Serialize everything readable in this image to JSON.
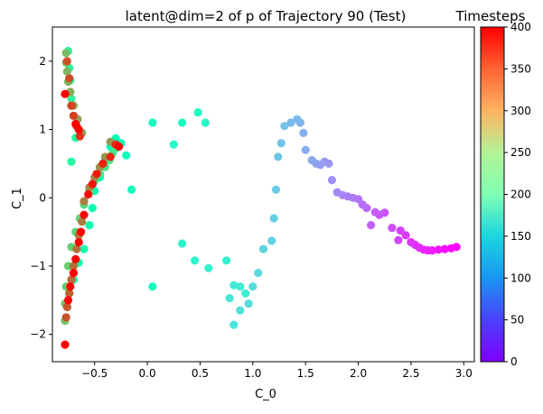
{
  "chart_data": {
    "type": "scatter",
    "title": "latent@dim=2 of p of Trajectory 90 (Test)",
    "xlabel": "C_0",
    "ylabel": "C_1",
    "xlim": [
      -0.9,
      3.1
    ],
    "ylim": [
      -2.4,
      2.5
    ],
    "xticks": [
      -0.5,
      0.0,
      0.5,
      1.0,
      1.5,
      2.0,
      2.5,
      3.0
    ],
    "xtick_labels": [
      "−0.5",
      "0.0",
      "0.5",
      "1.0",
      "1.5",
      "2.0",
      "2.5",
      "3.0"
    ],
    "yticks": [
      -2,
      -1,
      0,
      1,
      2
    ],
    "ytick_labels": [
      "−2",
      "−1",
      "0",
      "1",
      "2"
    ],
    "grid": false,
    "colormap": "rainbow",
    "colorbar": {
      "label": "Timesteps",
      "range": [
        0,
        400
      ],
      "ticks": [
        0,
        50,
        100,
        150,
        200,
        250,
        300,
        350,
        400
      ],
      "tick_labels": [
        "0",
        "50",
        "100",
        "150",
        "200",
        "250",
        "300",
        "350",
        "400"
      ]
    },
    "points": [
      [
        2.93,
        -0.72,
        0
      ],
      [
        2.88,
        -0.74,
        3
      ],
      [
        2.82,
        -0.75,
        6
      ],
      [
        2.76,
        -0.76,
        9
      ],
      [
        2.7,
        -0.77,
        12
      ],
      [
        2.66,
        -0.77,
        15
      ],
      [
        2.62,
        -0.76,
        18
      ],
      [
        2.58,
        -0.73,
        21
      ],
      [
        2.54,
        -0.69,
        24
      ],
      [
        2.5,
        -0.65,
        27
      ],
      [
        2.45,
        -0.55,
        30
      ],
      [
        2.4,
        -0.48,
        33
      ],
      [
        2.38,
        -0.62,
        36
      ],
      [
        2.32,
        -0.44,
        39
      ],
      [
        2.25,
        -0.22,
        42
      ],
      [
        2.2,
        -0.25,
        45
      ],
      [
        2.16,
        -0.21,
        48
      ],
      [
        2.12,
        -0.4,
        51
      ],
      [
        2.08,
        -0.15,
        54
      ],
      [
        2.04,
        -0.1,
        57
      ],
      [
        2.0,
        -0.02,
        60
      ],
      [
        1.95,
        0.0,
        63
      ],
      [
        1.9,
        0.02,
        66
      ],
      [
        1.85,
        0.04,
        69
      ],
      [
        1.8,
        0.08,
        72
      ],
      [
        1.75,
        0.26,
        75
      ],
      [
        1.72,
        0.5,
        78
      ],
      [
        1.68,
        0.53,
        81
      ],
      [
        1.64,
        0.48,
        84
      ],
      [
        1.6,
        0.5,
        87
      ],
      [
        1.56,
        0.55,
        90
      ],
      [
        1.5,
        0.7,
        93
      ],
      [
        1.48,
        0.95,
        96
      ],
      [
        1.45,
        1.1,
        99
      ],
      [
        1.42,
        1.15,
        102
      ],
      [
        1.36,
        1.1,
        105
      ],
      [
        1.3,
        1.05,
        108
      ],
      [
        1.27,
        0.8,
        111
      ],
      [
        1.24,
        0.6,
        114
      ],
      [
        1.22,
        0.12,
        117
      ],
      [
        1.2,
        -0.3,
        120
      ],
      [
        1.18,
        -0.63,
        123
      ],
      [
        1.1,
        -0.75,
        126
      ],
      [
        1.05,
        -1.1,
        129
      ],
      [
        1.0,
        -1.3,
        132
      ],
      [
        0.96,
        -1.55,
        135
      ],
      [
        0.88,
        -1.65,
        138
      ],
      [
        0.82,
        -1.86,
        141
      ],
      [
        0.78,
        -1.47,
        144
      ],
      [
        0.82,
        -1.28,
        147
      ],
      [
        0.88,
        -1.3,
        150
      ],
      [
        0.93,
        -1.4,
        153
      ],
      [
        0.75,
        -0.92,
        156
      ],
      [
        0.58,
        -1.03,
        159
      ],
      [
        0.45,
        -0.92,
        162
      ],
      [
        0.33,
        -0.67,
        165
      ],
      [
        0.25,
        0.78,
        168
      ],
      [
        0.55,
        1.1,
        171
      ],
      [
        0.48,
        1.25,
        174
      ],
      [
        0.33,
        1.1,
        177
      ],
      [
        0.05,
        1.1,
        180
      ],
      [
        0.05,
        -1.3,
        183
      ],
      [
        -0.15,
        0.12,
        186
      ],
      [
        -0.2,
        0.62,
        189
      ],
      [
        -0.25,
        0.8,
        192
      ],
      [
        -0.3,
        0.87,
        195
      ],
      [
        -0.35,
        0.75,
        198
      ],
      [
        -0.4,
        0.55,
        201
      ],
      [
        -0.45,
        0.3,
        204
      ],
      [
        -0.5,
        0.1,
        207
      ],
      [
        -0.52,
        -0.15,
        210
      ],
      [
        -0.55,
        -0.4,
        213
      ],
      [
        -0.6,
        -0.75,
        216
      ],
      [
        -0.65,
        -0.95,
        219
      ],
      [
        -0.7,
        -1.2,
        222
      ],
      [
        -0.68,
        0.88,
        225
      ],
      [
        -0.72,
        0.53,
        228
      ],
      [
        -0.75,
        2.15,
        231
      ],
      [
        -0.74,
        1.9,
        234
      ],
      [
        -0.73,
        1.72,
        237
      ],
      [
        -0.72,
        1.45,
        240
      ],
      [
        -0.74,
        -1.4,
        243
      ],
      [
        -0.76,
        -1.6,
        246
      ],
      [
        -0.3,
        0.72,
        249
      ],
      [
        -0.33,
        0.65,
        252
      ],
      [
        -0.36,
        0.55,
        255
      ],
      [
        -0.4,
        0.45,
        258
      ],
      [
        -0.45,
        0.35,
        261
      ],
      [
        -0.5,
        0.25,
        264
      ],
      [
        -0.55,
        0.1,
        267
      ],
      [
        -0.6,
        -0.1,
        270
      ],
      [
        -0.64,
        -0.3,
        273
      ],
      [
        -0.68,
        -0.5,
        276
      ],
      [
        -0.72,
        -0.72,
        279
      ],
      [
        -0.75,
        -1.0,
        282
      ],
      [
        -0.77,
        -1.3,
        285
      ],
      [
        -0.78,
        -1.55,
        288
      ],
      [
        -0.78,
        -1.8,
        291
      ],
      [
        -0.77,
        2.12,
        294
      ],
      [
        -0.77,
        1.98,
        297
      ],
      [
        -0.76,
        1.85,
        300
      ],
      [
        -0.75,
        1.7,
        303
      ],
      [
        -0.73,
        1.55,
        306
      ],
      [
        -0.7,
        1.35,
        309
      ],
      [
        -0.66,
        1.15,
        312
      ],
      [
        -0.62,
        0.95,
        315
      ],
      [
        -0.35,
        0.82,
        318
      ],
      [
        -0.4,
        0.6,
        321
      ],
      [
        -0.45,
        0.45,
        324
      ],
      [
        -0.5,
        0.3,
        327
      ],
      [
        -0.55,
        0.15,
        330
      ],
      [
        -0.6,
        -0.05,
        333
      ],
      [
        -0.62,
        -0.35,
        336
      ],
      [
        -0.65,
        -0.55,
        339
      ],
      [
        -0.67,
        -0.75,
        342
      ],
      [
        -0.7,
        -1.0,
        345
      ],
      [
        -0.72,
        -1.2,
        348
      ],
      [
        -0.74,
        -1.4,
        351
      ],
      [
        -0.76,
        -1.6,
        354
      ],
      [
        -0.77,
        -1.75,
        357
      ],
      [
        -0.76,
        2.0,
        360
      ],
      [
        -0.74,
        1.75,
        363
      ],
      [
        -0.72,
        1.35,
        366
      ],
      [
        -0.7,
        1.2,
        369
      ],
      [
        -0.67,
        1.05,
        372
      ],
      [
        -0.64,
        0.9,
        375
      ],
      [
        -0.3,
        0.78,
        378
      ],
      [
        -0.35,
        0.6,
        381
      ],
      [
        -0.42,
        0.5,
        384
      ],
      [
        -0.48,
        0.35,
        387
      ],
      [
        -0.52,
        0.2,
        390
      ],
      [
        -0.56,
        0.05,
        393
      ],
      [
        -0.6,
        -0.25,
        396
      ],
      [
        -0.63,
        -0.5,
        399
      ],
      [
        -0.65,
        -0.65,
        400
      ],
      [
        -0.68,
        -0.9,
        400
      ],
      [
        -0.7,
        -1.1,
        400
      ],
      [
        -0.73,
        -1.3,
        400
      ],
      [
        -0.75,
        -1.5,
        400
      ],
      [
        -0.78,
        -2.15,
        400
      ],
      [
        -0.78,
        1.52,
        400
      ],
      [
        -0.68,
        1.08,
        400
      ],
      [
        -0.65,
        1.0,
        400
      ],
      [
        -0.27,
        0.75,
        400
      ]
    ]
  }
}
